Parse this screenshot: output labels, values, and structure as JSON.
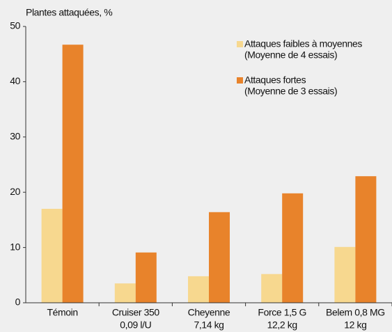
{
  "chart_data": {
    "type": "bar",
    "y_label": "Plantes attaquées, %",
    "categories": [
      [
        "Témoin"
      ],
      [
        "Cruiser 350",
        "0,09 l/U"
      ],
      [
        "Cheyenne",
        "7,14 kg"
      ],
      [
        "Force 1,5 G",
        "12,2 kg"
      ],
      [
        "Belem 0,8 MG",
        "12 kg"
      ]
    ],
    "series": [
      {
        "name": "Attaques faibles à moyennes",
        "note": "(Moyenne de 4 essais)",
        "color": "#f7d88f",
        "values": [
          17.0,
          3.5,
          4.8,
          5.2,
          10.1
        ]
      },
      {
        "name": "Attaques fortes",
        "note": "(Moyenne de 3 essais)",
        "color": "#e8832b",
        "values": [
          46.7,
          9.1,
          16.4,
          19.8,
          22.9
        ]
      }
    ],
    "ylim": [
      0,
      50
    ],
    "yticks": [
      0,
      10,
      20,
      30,
      40,
      50
    ],
    "grid": false,
    "legend": "upper right"
  }
}
